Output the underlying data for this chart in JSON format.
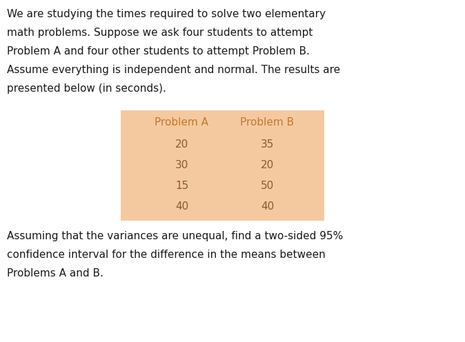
{
  "lines_p1": [
    "We are studying the times required to solve two elementary",
    "math problems. Suppose we ask four students to attempt",
    "Problem A and four other students to attempt Problem B.",
    "Assume everything is independent and normal. The results are",
    "presented below (in seconds)."
  ],
  "lines_p2": [
    "Assuming that the variances are unequal, find a two-sided 95%",
    "confidence interval for the difference in the means between",
    "Problems A and B."
  ],
  "table_headers": [
    "Problem A",
    "Problem B"
  ],
  "table_data": [
    [
      "20",
      "35"
    ],
    [
      "30",
      "20"
    ],
    [
      "15",
      "50"
    ],
    [
      "40",
      "40"
    ]
  ],
  "table_bg_color": "#F5C9A0",
  "table_header_color": "#C07830",
  "table_data_color": "#8B5A2B",
  "text_color": "#1a1a1a",
  "bg_color": "#ffffff",
  "font_size_body": 11.0,
  "font_size_table": 11.0
}
